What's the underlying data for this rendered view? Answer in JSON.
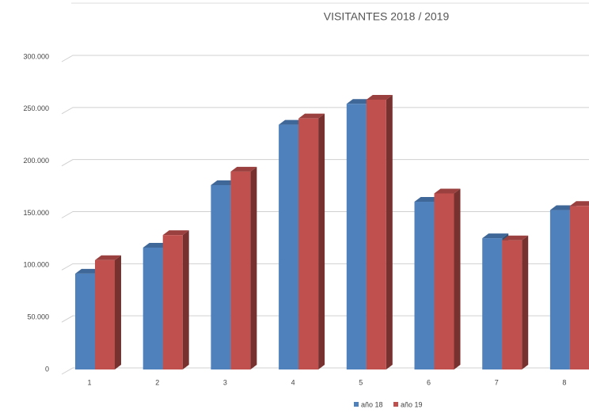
{
  "chart_data": {
    "type": "bar3d",
    "title": "VISITANTES 2018 / 2019",
    "categories": [
      "1",
      "2",
      "3",
      "4",
      "5",
      "6",
      "7",
      "8"
    ],
    "series": [
      {
        "name": "año 18",
        "color": "#4f81bd",
        "values": [
          92000,
          117000,
          177000,
          235000,
          255000,
          161000,
          126000,
          153000
        ]
      },
      {
        "name": "año 19",
        "color": "#c0504d",
        "values": [
          105000,
          129000,
          190000,
          241000,
          259000,
          169000,
          124000,
          157000
        ]
      }
    ],
    "ylim": [
      0,
      300000
    ],
    "yticks": [
      0,
      {
        "value": 50000,
        "label": "50.000"
      },
      {
        "value": 100000,
        "label": "100.000"
      },
      {
        "value": 150000,
        "label": "150.000"
      },
      {
        "value": 200000,
        "label": "200.000"
      },
      {
        "value": 250000,
        "label": "250.000"
      },
      {
        "value": 300000,
        "label": "300.000"
      }
    ],
    "grid": true,
    "legend": "bottom"
  }
}
